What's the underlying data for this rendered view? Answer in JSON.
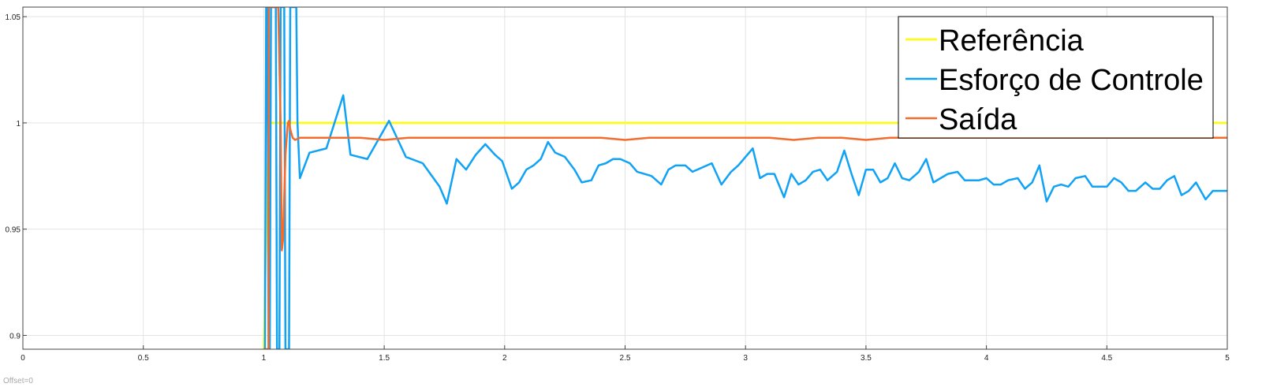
{
  "chart_data": {
    "type": "line",
    "title": "",
    "xlabel": "",
    "ylabel": "",
    "xlim": [
      0,
      5
    ],
    "ylim": [
      0.8935,
      1.0545
    ],
    "xticks": [
      "0",
      "0.5",
      "1",
      "1.5",
      "2",
      "2.5",
      "3",
      "3.5",
      "4",
      "4.5",
      "5"
    ],
    "xtick_values": [
      0,
      0.5,
      1,
      1.5,
      2,
      2.5,
      3,
      3.5,
      4,
      4.5,
      5
    ],
    "yticks": [
      "0.9",
      "0.95",
      "1",
      "1.05"
    ],
    "ytick_values": [
      0.9,
      0.95,
      1,
      1.05
    ],
    "grid": true,
    "legend_position": "top-right",
    "legend": [
      "Referência",
      "Esforço de Controle",
      "Saída"
    ],
    "series": [
      {
        "name": "Referência",
        "color": "#ffff00",
        "x": [
          1.0,
          1.02,
          5.0
        ],
        "y": [
          0.8935,
          1.0,
          1.0
        ]
      },
      {
        "name": "Esforço de Controle",
        "color": "#0fa2f5",
        "x": [
          1.0,
          1.005,
          1.01,
          1.015,
          1.02,
          1.025,
          1.03,
          1.035,
          1.04,
          1.045,
          1.05,
          1.055,
          1.06,
          1.065,
          1.07,
          1.075,
          1.08,
          1.085,
          1.09,
          1.095,
          1.1,
          1.105,
          1.11,
          1.115,
          1.12,
          1.125,
          1.13,
          1.135,
          1.14,
          1.15,
          1.19,
          1.26,
          1.33,
          1.36,
          1.43,
          1.52,
          1.59,
          1.66,
          1.73,
          1.76,
          1.8,
          1.84,
          1.88,
          1.92,
          1.96,
          1.99,
          2.03,
          2.06,
          2.09,
          2.12,
          2.15,
          2.18,
          2.21,
          2.25,
          2.29,
          2.32,
          2.36,
          2.39,
          2.42,
          2.45,
          2.48,
          2.52,
          2.55,
          2.58,
          2.61,
          2.65,
          2.68,
          2.71,
          2.75,
          2.78,
          2.82,
          2.86,
          2.9,
          2.94,
          2.97,
          3.0,
          3.03,
          3.06,
          3.09,
          3.12,
          3.16,
          3.19,
          3.22,
          3.25,
          3.28,
          3.31,
          3.34,
          3.38,
          3.41,
          3.44,
          3.47,
          3.5,
          3.53,
          3.56,
          3.59,
          3.62,
          3.65,
          3.68,
          3.72,
          3.75,
          3.78,
          3.81,
          3.84,
          3.88,
          3.91,
          3.94,
          3.97,
          4.0,
          4.03,
          4.06,
          4.09,
          4.13,
          4.16,
          4.19,
          4.22,
          4.25,
          4.28,
          4.31,
          4.34,
          4.37,
          4.41,
          4.44,
          4.47,
          4.5,
          4.53,
          4.56,
          4.59,
          4.62,
          4.66,
          4.69,
          4.72,
          4.75,
          4.78,
          4.81,
          4.84,
          4.87,
          4.91,
          4.94,
          4.97,
          5.0
        ],
        "y": [
          0.8935,
          0.8935,
          1.0545,
          1.0545,
          0.8935,
          0.8935,
          1.0545,
          1.0545,
          1.0545,
          1.0545,
          1.0545,
          0.8935,
          0.8935,
          0.8935,
          1.0545,
          1.0545,
          1.0545,
          1.0545,
          0.8935,
          0.8935,
          0.8935,
          0.8935,
          1.0545,
          1.0545,
          1.0545,
          1.0545,
          1.0545,
          1.0545,
          1.0,
          0.974,
          0.986,
          0.988,
          1.013,
          0.985,
          0.983,
          1.001,
          0.984,
          0.981,
          0.97,
          0.962,
          0.983,
          0.978,
          0.985,
          0.99,
          0.985,
          0.982,
          0.969,
          0.972,
          0.978,
          0.98,
          0.983,
          0.991,
          0.986,
          0.984,
          0.978,
          0.972,
          0.973,
          0.98,
          0.981,
          0.983,
          0.983,
          0.981,
          0.977,
          0.976,
          0.975,
          0.971,
          0.978,
          0.98,
          0.98,
          0.977,
          0.979,
          0.981,
          0.971,
          0.977,
          0.98,
          0.984,
          0.988,
          0.974,
          0.976,
          0.976,
          0.965,
          0.976,
          0.971,
          0.973,
          0.977,
          0.978,
          0.973,
          0.977,
          0.987,
          0.976,
          0.966,
          0.978,
          0.978,
          0.972,
          0.974,
          0.981,
          0.974,
          0.973,
          0.977,
          0.983,
          0.972,
          0.974,
          0.976,
          0.977,
          0.973,
          0.973,
          0.973,
          0.974,
          0.971,
          0.971,
          0.973,
          0.974,
          0.969,
          0.972,
          0.98,
          0.963,
          0.97,
          0.971,
          0.97,
          0.974,
          0.975,
          0.97,
          0.97,
          0.97,
          0.974,
          0.972,
          0.968,
          0.968,
          0.972,
          0.969,
          0.969,
          0.973,
          0.975,
          0.966,
          0.968,
          0.972,
          0.964,
          0.968,
          0.968,
          0.968
        ]
      },
      {
        "name": "Saída",
        "color": "#f26c2e",
        "x": [
          1.0,
          1.02,
          1.021,
          1.03,
          1.04,
          1.05,
          1.06,
          1.07,
          1.075,
          1.08,
          1.09,
          1.1,
          1.105,
          1.11,
          1.12,
          1.13,
          1.15,
          1.2,
          1.3,
          1.4,
          1.5,
          1.6,
          1.7,
          1.8,
          1.9,
          2.0,
          2.05,
          2.1,
          2.2,
          2.3,
          2.4,
          2.5,
          2.6,
          2.65,
          2.7,
          2.8,
          2.9,
          3.0,
          3.1,
          3.2,
          3.3,
          3.4,
          3.5,
          3.6,
          3.7,
          3.8,
          3.9,
          4.0,
          4.1,
          4.2,
          4.3,
          4.4,
          4.5,
          4.6,
          4.7,
          4.8,
          4.9,
          5.0
        ],
        "y": [
          0.8935,
          0.8935,
          1.0545,
          1.0545,
          1.0545,
          1.0545,
          1.0545,
          1.0,
          0.94,
          0.945,
          0.985,
          1.0,
          1.001,
          0.997,
          0.993,
          0.992,
          0.993,
          0.993,
          0.993,
          0.993,
          0.992,
          0.993,
          0.993,
          0.993,
          0.993,
          0.993,
          0.993,
          0.993,
          0.993,
          0.993,
          0.993,
          0.992,
          0.993,
          0.993,
          0.993,
          0.993,
          0.993,
          0.993,
          0.993,
          0.992,
          0.993,
          0.993,
          0.992,
          0.993,
          0.993,
          0.993,
          0.993,
          0.993,
          0.993,
          0.993,
          0.993,
          0.993,
          0.993,
          0.993,
          0.993,
          0.993,
          0.993,
          0.993
        ]
      }
    ]
  },
  "offset_text": "Offset=0"
}
